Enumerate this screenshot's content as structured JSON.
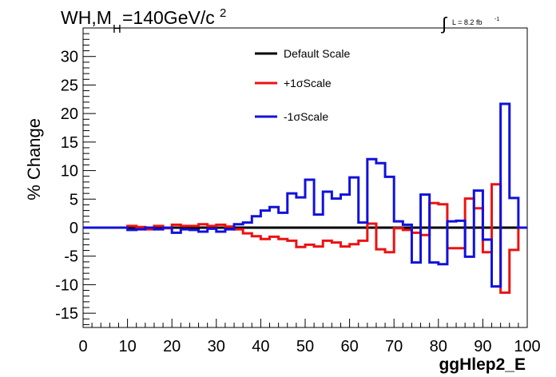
{
  "title": {
    "main": "WH,M",
    "sub": "H",
    "rest": "=140GeV/c",
    "sup": "2"
  },
  "lumi": {
    "integral": "∫",
    "text": "L = 8.2 fb",
    "sup": "-1"
  },
  "chart_data": {
    "type": "line",
    "drawstyle": "step",
    "xlabel": "ggHlep2_E",
    "ylabel": "% Change",
    "xlim": [
      0,
      100
    ],
    "ylim": [
      -17.5,
      35
    ],
    "xticks": [
      0,
      10,
      20,
      30,
      40,
      50,
      60,
      70,
      80,
      90,
      100
    ],
    "yticks": [
      -15,
      -10,
      -5,
      0,
      5,
      10,
      15,
      20,
      25,
      30
    ],
    "bin_edges": [
      0,
      2,
      4,
      6,
      8,
      10,
      12,
      14,
      16,
      18,
      20,
      22,
      24,
      26,
      28,
      30,
      32,
      34,
      36,
      38,
      40,
      42,
      44,
      46,
      48,
      50,
      52,
      54,
      56,
      58,
      60,
      62,
      64,
      66,
      68,
      70,
      72,
      74,
      76,
      78,
      80,
      82,
      84,
      86,
      88,
      90,
      92,
      94,
      96,
      98,
      100
    ],
    "legend_position": "top-center",
    "series": [
      {
        "name": "Default Scale",
        "color": "#000000",
        "values": [
          0,
          0,
          0,
          0,
          0,
          0,
          0,
          0,
          0,
          0,
          0,
          0,
          0,
          0,
          0,
          0,
          0,
          0,
          0,
          0,
          0,
          0,
          0,
          0,
          0,
          0,
          0,
          0,
          0,
          0,
          0,
          0,
          0,
          0,
          0,
          0,
          0,
          0,
          0,
          0,
          0,
          0,
          0,
          0,
          0,
          0,
          0,
          0,
          0,
          0
        ]
      },
      {
        "name": "+1σScale",
        "color": "#ee1111",
        "values": [
          0,
          0,
          0,
          0,
          0,
          0.3,
          0.1,
          -0.3,
          0.3,
          -0.1,
          0.5,
          0.3,
          0.3,
          0.6,
          0.3,
          0.5,
          0.2,
          -0.3,
          -1,
          -1.5,
          -2,
          -1.6,
          -2,
          -2.3,
          -3.4,
          -3,
          -3.3,
          -2.3,
          -2.6,
          -3.3,
          -2.9,
          -2.3,
          0.7,
          -3.8,
          -4.3,
          -0.1,
          -0.4,
          -0.9,
          -1.3,
          4.3,
          4.1,
          -3.6,
          -3.6,
          5.1,
          3.4,
          -4.3,
          7.6,
          -11.4,
          -3.9,
          0
        ]
      },
      {
        "name": "-1σScale",
        "color": "#1111dd",
        "values": [
          0,
          0,
          0,
          0,
          0,
          -0.4,
          -0.3,
          0,
          -0.3,
          0,
          -0.9,
          -0.3,
          -0.4,
          -0.7,
          -0.2,
          -0.7,
          -0.3,
          0.6,
          0.9,
          2,
          3,
          3.6,
          2.6,
          6,
          5.3,
          8.4,
          2.3,
          6.3,
          5.1,
          5.8,
          8.8,
          0.9,
          12,
          11.3,
          8.9,
          1.1,
          0.5,
          -6.1,
          5.8,
          -6.1,
          -6.4,
          1.1,
          1.2,
          -5.1,
          6.5,
          -2.1,
          -10.3,
          21.7,
          5.2,
          0
        ]
      }
    ]
  }
}
